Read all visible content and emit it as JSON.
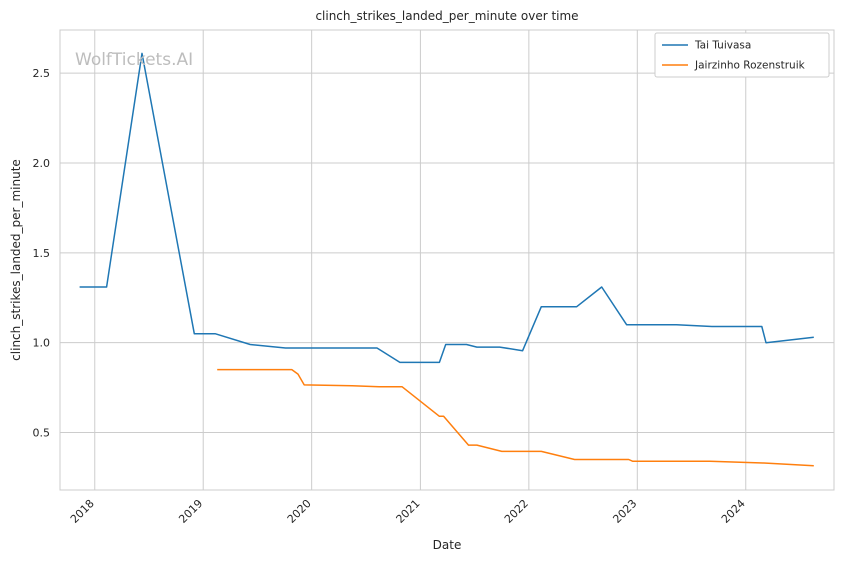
{
  "chart_data": {
    "type": "line",
    "title": "clinch_strikes_landed_per_minute over time",
    "xlabel": "Date",
    "ylabel": "clinch_strikes_landed_per_minute",
    "watermark": "WolfTickets.AI",
    "grid": true,
    "legend_position": "top-right",
    "x_tick_labels": [
      "2018",
      "2019",
      "2020",
      "2021",
      "2022",
      "2023",
      "2024"
    ],
    "y_ticks": [
      0.5,
      1.0,
      1.5,
      2.0,
      2.5
    ],
    "y_tick_labels": [
      "0.5",
      "1.0",
      "1.5",
      "2.0",
      "2.5"
    ],
    "xlim": [
      "2017-09-06",
      "2024-10-24"
    ],
    "ylim": [
      0.18,
      2.74
    ],
    "series": [
      {
        "name": "Tai Tuivasa",
        "color": "#1f77b4",
        "points": [
          {
            "x": "2017-11-11",
            "y": 1.31
          },
          {
            "x": "2018-02-10",
            "y": 1.31
          },
          {
            "x": "2018-06-09",
            "y": 2.61
          },
          {
            "x": "2018-12-02",
            "y": 1.05
          },
          {
            "x": "2019-02-10",
            "y": 1.05
          },
          {
            "x": "2019-06-08",
            "y": 0.99
          },
          {
            "x": "2019-10-05",
            "y": 0.97
          },
          {
            "x": "2020-08-08",
            "y": 0.97
          },
          {
            "x": "2020-10-24",
            "y": 0.89
          },
          {
            "x": "2021-03-06",
            "y": 0.89
          },
          {
            "x": "2021-03-27",
            "y": 0.99
          },
          {
            "x": "2021-06-05",
            "y": 0.99
          },
          {
            "x": "2021-07-10",
            "y": 0.975
          },
          {
            "x": "2021-09-25",
            "y": 0.975
          },
          {
            "x": "2021-12-11",
            "y": 0.955
          },
          {
            "x": "2022-02-12",
            "y": 1.2
          },
          {
            "x": "2022-06-11",
            "y": 1.2
          },
          {
            "x": "2022-09-03",
            "y": 1.31
          },
          {
            "x": "2022-11-26",
            "y": 1.1
          },
          {
            "x": "2023-05-13",
            "y": 1.1
          },
          {
            "x": "2023-09-09",
            "y": 1.09
          },
          {
            "x": "2024-02-24",
            "y": 1.09
          },
          {
            "x": "2024-03-09",
            "y": 1.0
          },
          {
            "x": "2024-08-17",
            "y": 1.03
          }
        ]
      },
      {
        "name": "Jairzinho Rozenstruik",
        "color": "#ff7f0e",
        "points": [
          {
            "x": "2019-02-17",
            "y": 0.85
          },
          {
            "x": "2019-10-26",
            "y": 0.85
          },
          {
            "x": "2019-11-16",
            "y": 0.825
          },
          {
            "x": "2019-12-07",
            "y": 0.765
          },
          {
            "x": "2020-05-16",
            "y": 0.76
          },
          {
            "x": "2020-08-15",
            "y": 0.755
          },
          {
            "x": "2020-10-31",
            "y": 0.755
          },
          {
            "x": "2021-03-06",
            "y": 0.59
          },
          {
            "x": "2021-03-20",
            "y": 0.59
          },
          {
            "x": "2021-06-12",
            "y": 0.43
          },
          {
            "x": "2021-07-10",
            "y": 0.43
          },
          {
            "x": "2021-10-02",
            "y": 0.395
          },
          {
            "x": "2022-02-12",
            "y": 0.395
          },
          {
            "x": "2022-06-04",
            "y": 0.35
          },
          {
            "x": "2022-12-03",
            "y": 0.35
          },
          {
            "x": "2022-12-17",
            "y": 0.34
          },
          {
            "x": "2023-09-02",
            "y": 0.34
          },
          {
            "x": "2024-03-02",
            "y": 0.33
          },
          {
            "x": "2024-08-17",
            "y": 0.315
          }
        ]
      }
    ]
  }
}
